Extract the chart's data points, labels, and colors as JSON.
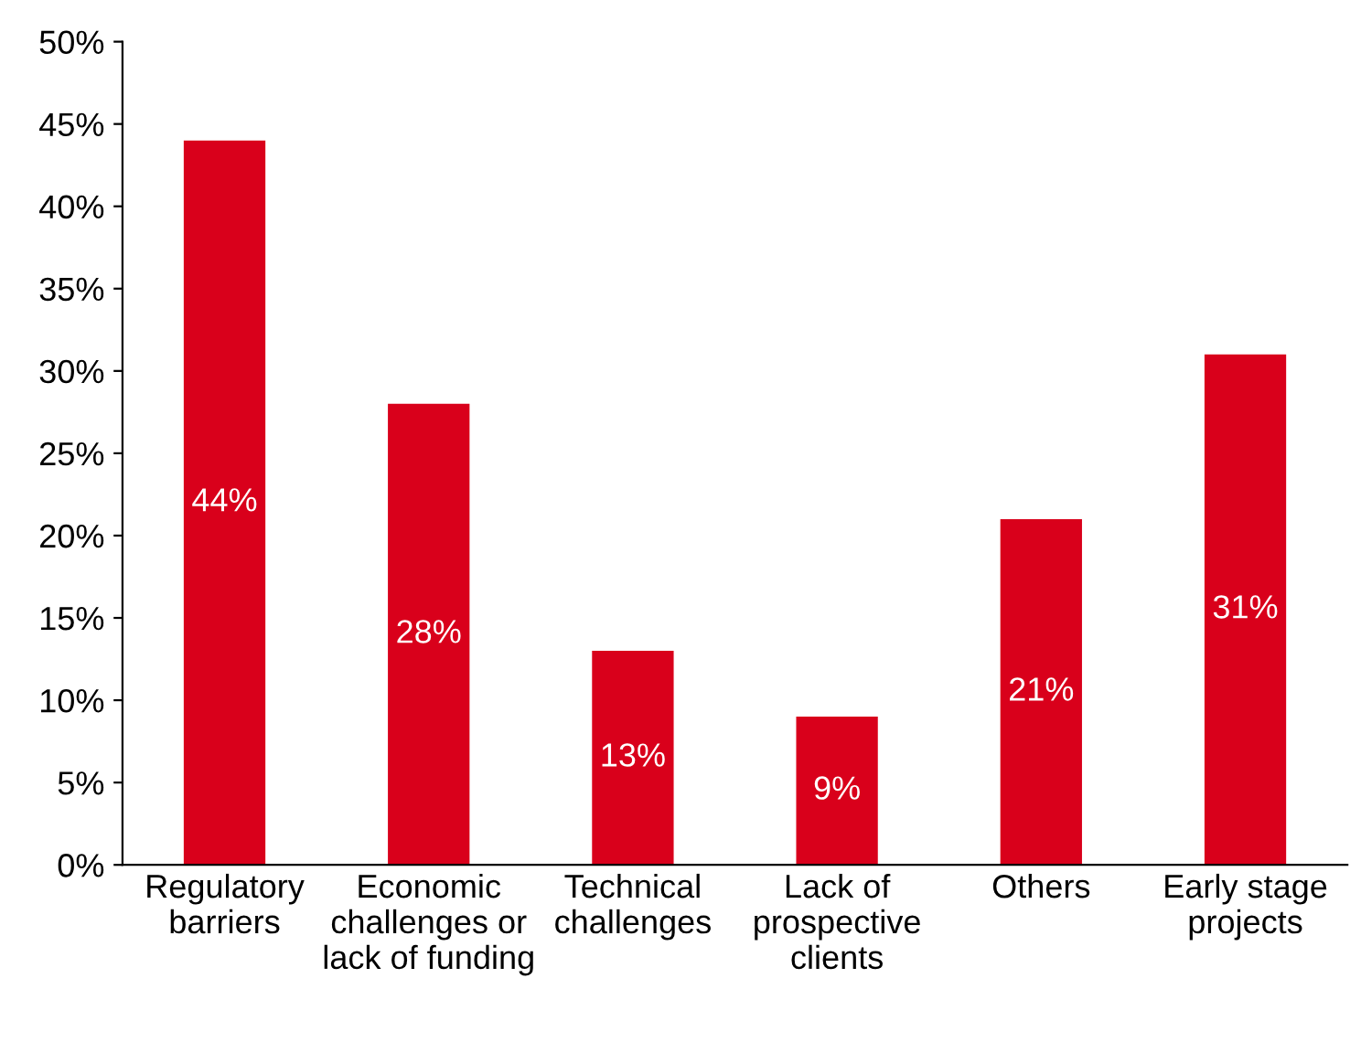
{
  "chart_data": {
    "type": "bar",
    "categories": [
      "Regulatory\nbarriers",
      "Economic\nchallenges or\nlack of funding",
      "Technical\nchallenges",
      "Lack of\nprospective\nclients",
      "Others",
      "Early stage\nprojects"
    ],
    "values": [
      44,
      28,
      13,
      9,
      21,
      31
    ],
    "value_labels": [
      "44%",
      "28%",
      "13%",
      "9%",
      "21%",
      "31%"
    ],
    "color": "#d9001b",
    "ylim": [
      0,
      50
    ],
    "yticks": [
      {
        "value": 0,
        "label": "0%"
      },
      {
        "value": 5,
        "label": "5%"
      },
      {
        "value": 10,
        "label": "10%"
      },
      {
        "value": 15,
        "label": "15%"
      },
      {
        "value": 20,
        "label": "20%"
      },
      {
        "value": 25,
        "label": "25%"
      },
      {
        "value": 30,
        "label": "30%"
      },
      {
        "value": 35,
        "label": "35%"
      },
      {
        "value": 40,
        "label": "40%"
      },
      {
        "value": 45,
        "label": "45%"
      },
      {
        "value": 50,
        "label": "50%"
      }
    ],
    "grid": false
  }
}
